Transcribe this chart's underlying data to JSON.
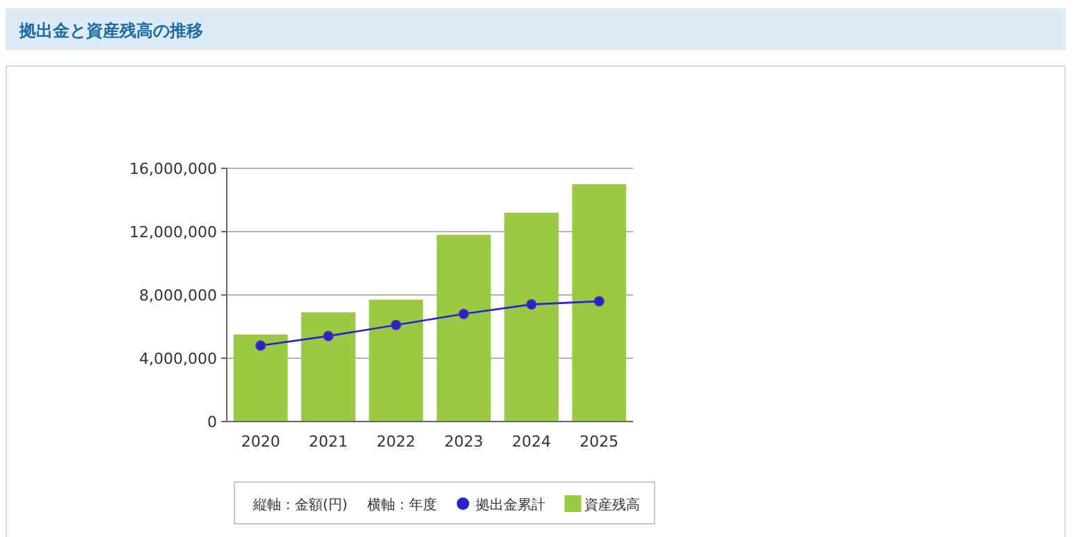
{
  "chart_data": {
    "type": "bar",
    "title": "拠出金と資産残高の推移",
    "annotations": [
      "縦軸：金額(円)",
      "横軸：年度"
    ],
    "categories": [
      "2020",
      "2021",
      "2022",
      "2023",
      "2024",
      "2025"
    ],
    "series": [
      {
        "name": "拠出金累計",
        "type": "line",
        "color": "#2424d0",
        "values": [
          4800000,
          5400000,
          6100000,
          6800000,
          7400000,
          7600000
        ]
      },
      {
        "name": "資産残高",
        "color": "#9bc944",
        "values": [
          5500000,
          6900000,
          7700000,
          11800000,
          13200000,
          15000000
        ]
      }
    ],
    "ylim": [
      0,
      16000000
    ],
    "yticks": [
      {
        "value": 0,
        "label": "0"
      },
      {
        "value": 4000000,
        "label": "4,000,000"
      },
      {
        "value": 8000000,
        "label": "8,000,000"
      },
      {
        "value": 12000000,
        "label": "12,000,000"
      },
      {
        "value": 16000000,
        "label": "16,000,000"
      }
    ],
    "grid": "y",
    "legend": "bottom",
    "marker": "circle"
  }
}
